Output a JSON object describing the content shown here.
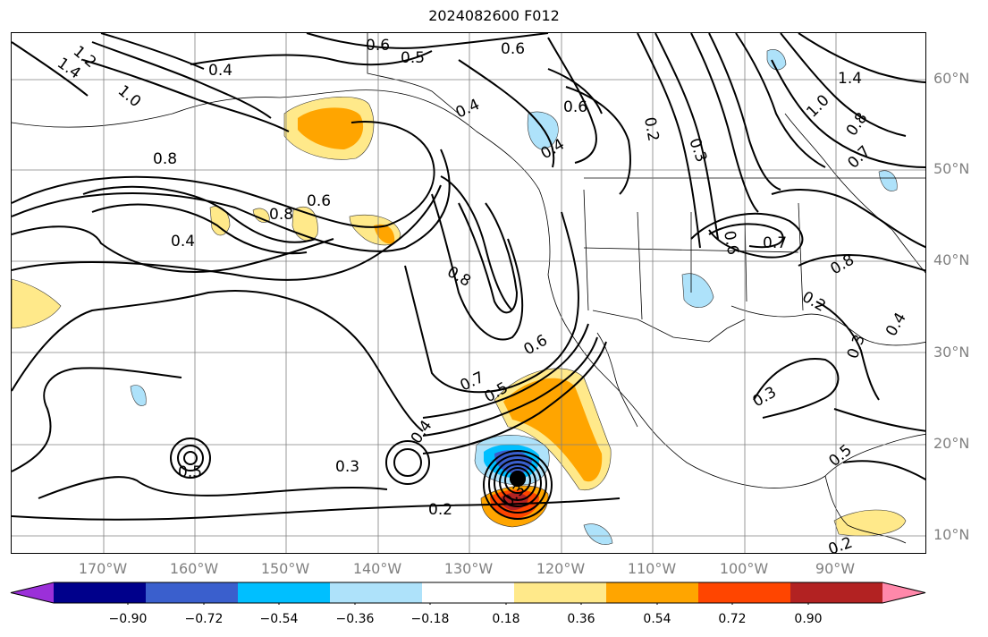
{
  "title": "2024082600 F012",
  "lat_labels": [
    "60°N",
    "50°N",
    "40°N",
    "30°N",
    "20°N",
    "10°N"
  ],
  "lon_labels": [
    "170°W",
    "160°W",
    "150°W",
    "140°W",
    "130°W",
    "120°W",
    "110°W",
    "100°W",
    "90°W"
  ],
  "colorbar": {
    "ticks": [
      "−0.90",
      "−0.72",
      "−0.54",
      "−0.36",
      "−0.18",
      "0.18",
      "0.36",
      "0.54",
      "0.72",
      "0.90"
    ],
    "colors": [
      "#9b30d9",
      "#00008b",
      "#3a5fcd",
      "#00bfff",
      "#aee2fa",
      "#ffffff",
      "#ffe98a",
      "#ffa500",
      "#ff4500",
      "#b22222",
      "#ff88aa"
    ]
  },
  "contour_labels": [
    "1.2",
    "1.4",
    "1.0",
    "0.8",
    "0.4",
    "0.6",
    "0.5",
    "0.6",
    "0.4",
    "0.6",
    "0.4",
    "0.2",
    "0.3",
    "1.4",
    "1.0",
    "0.8",
    "0.7",
    "0.8",
    "0.6",
    "0.4",
    "0.8",
    "0.6",
    "0.7",
    "0.8",
    "0.2",
    "0.3",
    "0.4",
    "0.6",
    "0.7",
    "0.5",
    "0.4",
    "0.3",
    "0.5",
    "0.3",
    "0.2",
    "0.3",
    "0.5",
    "0.2"
  ],
  "colors": {
    "contour": "#000000",
    "grid": "#808080",
    "coast": "#000000",
    "axis_label": "#808080"
  }
}
